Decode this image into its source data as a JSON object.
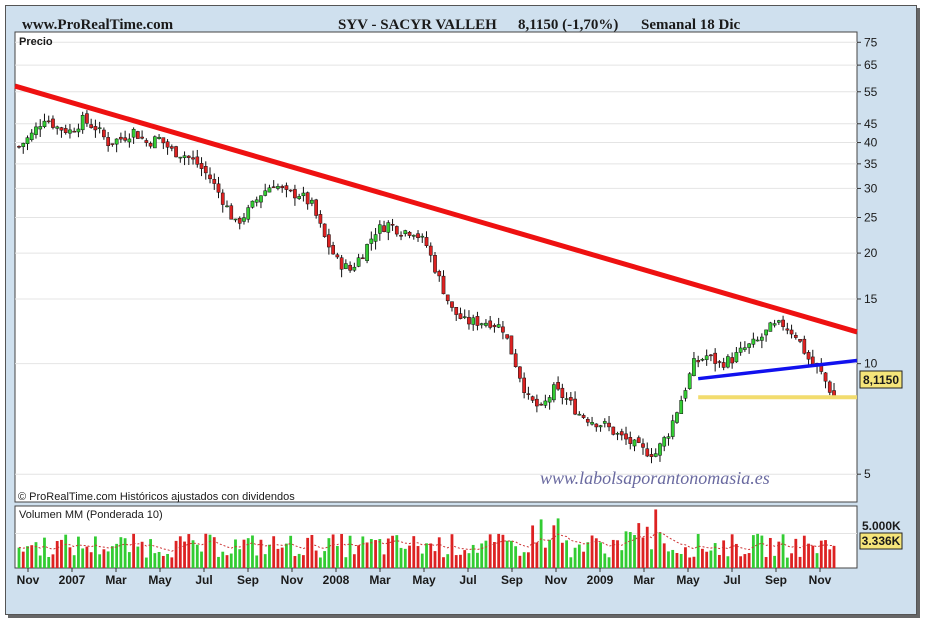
{
  "header": {
    "site": "www.ProRealTime.com",
    "symbol_title": "SYV - SACYR VALLEH",
    "price_change": "8,1150 (-1,70%)",
    "period": "Semanal 18 Dic"
  },
  "panel_label": "Precio",
  "copyright": "© ProRealTime.com Históricos ajustados con dividendos",
  "watermark": "www.labolsaporantonomasia.es",
  "current_price_label": "8,1150",
  "volume_panel": {
    "label": "Volumen MM (Ponderada 10)",
    "axis_label": "5.000K",
    "current_label": "3.336K"
  },
  "colors": {
    "up": "#33cc33",
    "down": "#dd2222",
    "trendline_down": "#ee1111",
    "trendline_support": "#1111ee",
    "price_level": "#f2dc6e",
    "volume_ma": "#cc3333",
    "frame_bg": "#cfe0ee"
  },
  "chart_data": {
    "type": "candlestick",
    "scale": "log",
    "title": "SYV - SACYR VALLEH",
    "ylabel": "Precio",
    "y_ticks": [
      5,
      10,
      15,
      20,
      25,
      30,
      35,
      40,
      45,
      55,
      65,
      75
    ],
    "x_tick_labels": [
      "Nov",
      "2007",
      "Mar",
      "May",
      "Jul",
      "Sep",
      "Nov",
      "2008",
      "Mar",
      "May",
      "Jul",
      "Sep",
      "Nov",
      "2009",
      "Mar",
      "May",
      "Jul",
      "Sep",
      "Nov"
    ],
    "x_range": [
      "2006-10",
      "2009-12"
    ],
    "ylim": [
      4.2,
      80
    ],
    "price_path": [
      [
        0,
        39
      ],
      [
        3,
        42
      ],
      [
        6,
        47
      ],
      [
        9,
        44
      ],
      [
        12,
        43
      ],
      [
        15,
        46
      ],
      [
        18,
        44
      ],
      [
        21,
        40
      ],
      [
        24,
        41
      ],
      [
        27,
        43
      ],
      [
        30,
        40
      ],
      [
        33,
        41
      ],
      [
        36,
        38
      ],
      [
        39,
        37
      ],
      [
        42,
        35
      ],
      [
        45,
        32
      ],
      [
        48,
        28
      ],
      [
        51,
        24
      ],
      [
        54,
        26
      ],
      [
        57,
        29
      ],
      [
        60,
        31
      ],
      [
        63,
        29
      ],
      [
        66,
        29
      ],
      [
        69,
        27
      ],
      [
        72,
        22
      ],
      [
        75,
        19
      ],
      [
        78,
        18
      ],
      [
        81,
        20
      ],
      [
        84,
        23
      ],
      [
        87,
        24
      ],
      [
        90,
        23
      ],
      [
        93,
        23
      ],
      [
        96,
        21
      ],
      [
        99,
        17
      ],
      [
        102,
        14
      ],
      [
        105,
        13
      ],
      [
        108,
        13
      ],
      [
        111,
        13
      ],
      [
        114,
        12.5
      ],
      [
        117,
        10
      ],
      [
        120,
        8
      ],
      [
        123,
        7.5
      ],
      [
        126,
        8.5
      ],
      [
        129,
        8
      ],
      [
        132,
        7.3
      ],
      [
        135,
        7
      ],
      [
        138,
        6.8
      ],
      [
        141,
        6.4
      ],
      [
        144,
        6.1
      ],
      [
        147,
        5.8
      ],
      [
        150,
        5.7
      ],
      [
        153,
        6.5
      ],
      [
        156,
        8
      ],
      [
        159,
        10
      ],
      [
        162,
        10.5
      ],
      [
        165,
        10
      ],
      [
        168,
        10.3
      ],
      [
        171,
        11
      ],
      [
        174,
        11.5
      ],
      [
        177,
        12.5
      ],
      [
        180,
        12.8
      ],
      [
        183,
        12
      ],
      [
        186,
        10.3
      ],
      [
        189,
        9.4
      ],
      [
        192,
        8.1
      ]
    ],
    "trendlines": [
      {
        "name": "resistencia",
        "from": [
          0,
          57
        ],
        "to": [
          195,
          12.2
        ]
      },
      {
        "name": "soporte",
        "from": [
          160,
          9.1
        ],
        "to": [
          195,
          10.2
        ]
      },
      {
        "name": "nivel",
        "from": [
          160,
          8.1
        ],
        "to": [
          195,
          8.1
        ]
      }
    ],
    "last_price": 8.115,
    "change_pct": -1.7,
    "volume": {
      "unit": "K",
      "tick": 5000,
      "last_ma": 3336
    }
  }
}
